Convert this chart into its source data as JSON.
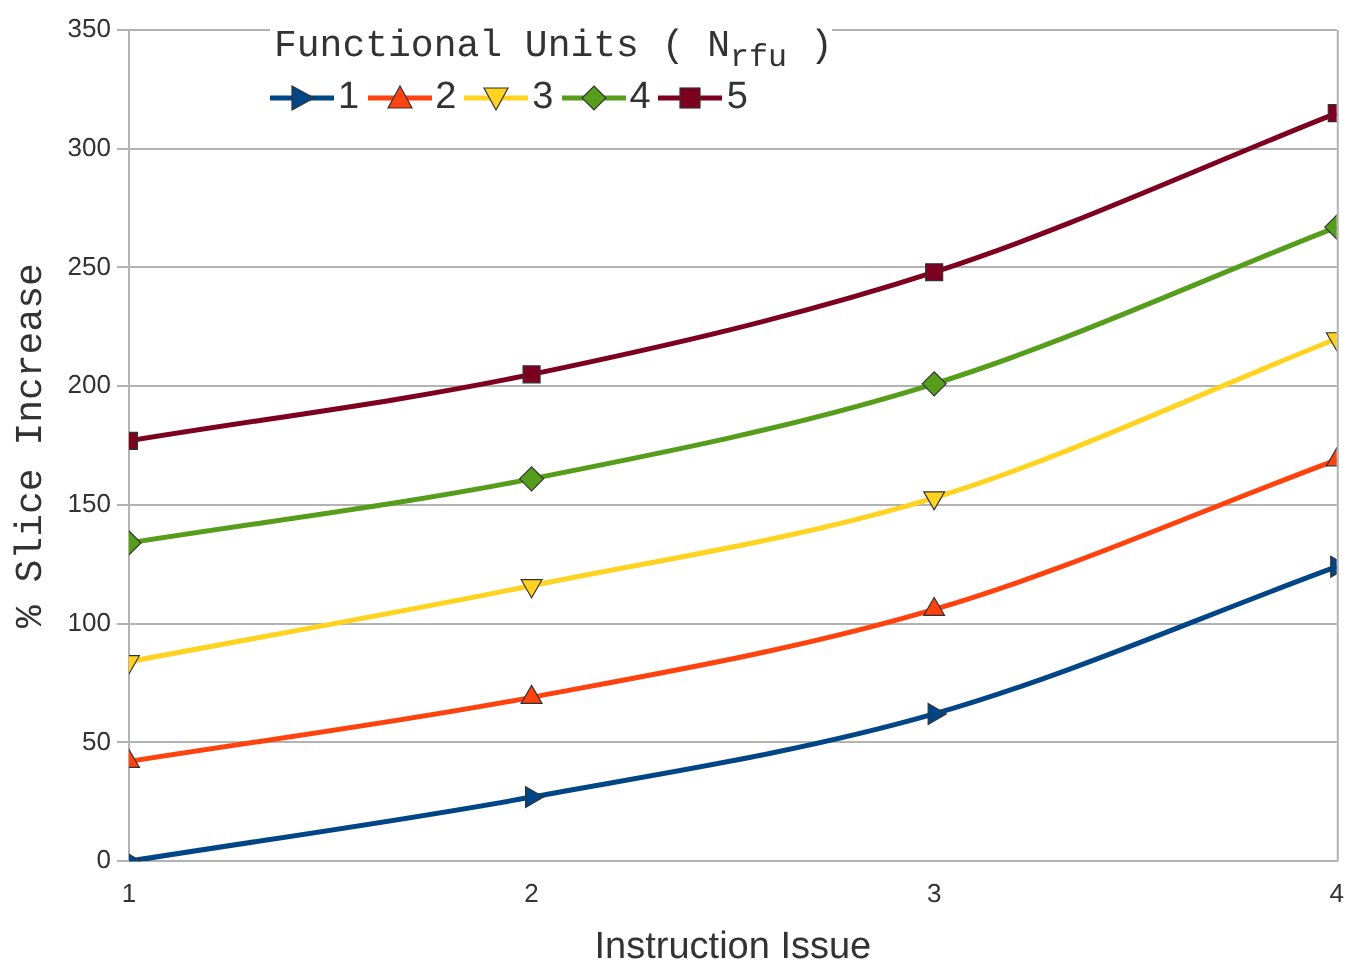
{
  "chart_data": {
    "type": "line",
    "xlabel": "Instruction Issue",
    "ylabel": "% Slice Increase",
    "legend_title": "Functional Units ( N$_{rfu}$ )",
    "x": [
      1,
      2,
      3,
      4
    ],
    "xlim": [
      1,
      4
    ],
    "xticks": [
      1,
      2,
      3,
      4
    ],
    "ylim": [
      0,
      350
    ],
    "yticks": [
      0,
      50,
      100,
      150,
      200,
      250,
      300,
      350
    ],
    "grid": "y",
    "legend": "top left",
    "series": [
      {
        "name": "1",
        "color": "#004586",
        "marker": "triangle-right",
        "values": [
          0,
          27,
          62,
          124
        ]
      },
      {
        "name": "2",
        "color": "#ff420e",
        "marker": "triangle",
        "values": [
          42,
          69,
          106,
          169
        ]
      },
      {
        "name": "3",
        "color": "#ffd320",
        "marker": "triangle-down",
        "values": [
          84,
          116,
          153,
          220
        ]
      },
      {
        "name": "4",
        "color": "#579d1c",
        "marker": "diamond",
        "values": [
          134,
          161,
          201,
          267
        ]
      },
      {
        "name": "5",
        "color": "#7e0021",
        "marker": "square",
        "values": [
          177,
          205,
          248,
          315
        ]
      }
    ]
  }
}
